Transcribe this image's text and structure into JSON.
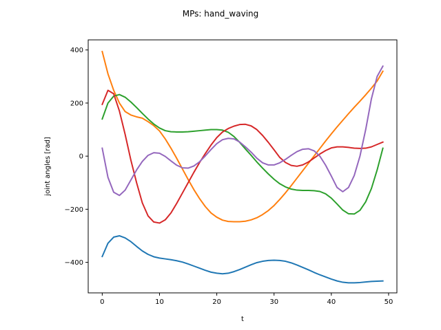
{
  "chart_data": {
    "type": "line",
    "title": "MPs: hand_waving",
    "xlabel": "t",
    "ylabel": "joint angles [rad]",
    "xlim": [
      -2.45,
      51.45
    ],
    "ylim": [
      -515,
      438
    ],
    "xticks": [
      0,
      10,
      20,
      30,
      40,
      50
    ],
    "yticks": [
      -400,
      -200,
      0,
      200,
      400
    ],
    "grid": false,
    "legend": "none",
    "x": [
      0,
      1,
      2,
      3,
      4,
      5,
      6,
      7,
      8,
      9,
      10,
      11,
      12,
      13,
      14,
      15,
      16,
      17,
      18,
      19,
      20,
      21,
      22,
      23,
      24,
      25,
      26,
      27,
      28,
      29,
      30,
      31,
      32,
      33,
      34,
      35,
      36,
      37,
      38,
      39,
      40,
      41,
      42,
      43,
      44,
      45,
      46,
      47,
      48,
      49
    ],
    "series": [
      {
        "color": "#1f77b4",
        "values": [
          -378,
          -328,
          -305,
          -300,
          -308,
          -322,
          -340,
          -357,
          -370,
          -379,
          -384,
          -387,
          -390,
          -394,
          -399,
          -406,
          -414,
          -422,
          -430,
          -437,
          -441,
          -443,
          -441,
          -435,
          -427,
          -418,
          -409,
          -401,
          -396,
          -393,
          -392,
          -393,
          -396,
          -402,
          -410,
          -419,
          -428,
          -438,
          -447,
          -455,
          -463,
          -470,
          -475,
          -477,
          -477,
          -476,
          -474,
          -472,
          -471,
          -470
        ]
      },
      {
        "color": "#ff7f0e",
        "values": [
          394,
          310,
          248,
          200,
          168,
          155,
          148,
          143,
          130,
          115,
          95,
          65,
          30,
          -8,
          -48,
          -88,
          -126,
          -160,
          -190,
          -214,
          -230,
          -241,
          -246,
          -247,
          -247,
          -245,
          -240,
          -232,
          -220,
          -205,
          -186,
          -163,
          -138,
          -111,
          -83,
          -55,
          -27,
          1,
          29,
          57,
          84,
          110,
          135,
          160,
          184,
          207,
          231,
          256,
          283,
          320
        ]
      },
      {
        "color": "#2ca02c",
        "values": [
          140,
          200,
          226,
          232,
          222,
          204,
          183,
          161,
          140,
          121,
          106,
          96,
          92,
          91,
          91,
          92,
          94,
          96,
          98,
          100,
          100,
          98,
          90,
          74,
          52,
          27,
          3,
          -22,
          -45,
          -67,
          -87,
          -104,
          -116,
          -124,
          -128,
          -129,
          -129,
          -130,
          -133,
          -142,
          -158,
          -180,
          -203,
          -217,
          -218,
          -204,
          -172,
          -122,
          -52,
          30
        ]
      },
      {
        "color": "#d62728",
        "values": [
          195,
          248,
          235,
          170,
          82,
          -15,
          -100,
          -176,
          -225,
          -248,
          -252,
          -240,
          -214,
          -178,
          -139,
          -100,
          -61,
          -24,
          10,
          42,
          70,
          91,
          104,
          113,
          119,
          120,
          114,
          100,
          78,
          52,
          24,
          -5,
          -24,
          -35,
          -38,
          -33,
          -22,
          -7,
          8,
          21,
          31,
          35,
          35,
          33,
          30,
          29,
          30,
          35,
          44,
          53
        ]
      },
      {
        "color": "#9467bd",
        "values": [
          30,
          -80,
          -136,
          -148,
          -128,
          -90,
          -52,
          -20,
          3,
          13,
          11,
          -1,
          -18,
          -34,
          -44,
          -45,
          -37,
          -21,
          1,
          25,
          47,
          62,
          67,
          65,
          53,
          35,
          15,
          -8,
          -25,
          -33,
          -33,
          -25,
          -12,
          3,
          17,
          26,
          28,
          20,
          0,
          -34,
          -75,
          -118,
          -134,
          -118,
          -73,
          0,
          100,
          216,
          300,
          339
        ]
      }
    ]
  }
}
